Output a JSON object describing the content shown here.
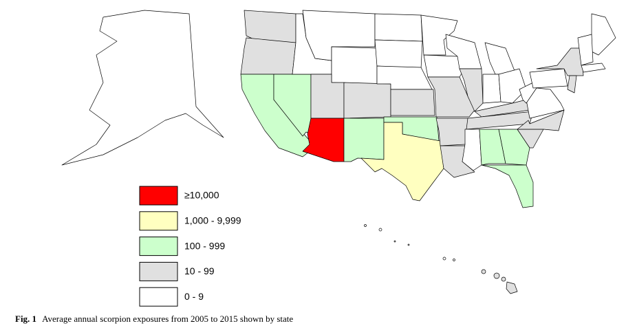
{
  "legend": {
    "items": [
      {
        "label": "≥10,000",
        "color": "#ff0000"
      },
      {
        "label": "1,000 - 9,999",
        "color": "#ffffc0"
      },
      {
        "label": "100 - 999",
        "color": "#ccffcc"
      },
      {
        "label": "10 - 99",
        "color": "#e0e0e0"
      },
      {
        "label": "0 - 9",
        "color": "#ffffff"
      }
    ]
  },
  "caption": {
    "label": "Fig. 1",
    "text": "Average annual scorpion exposures from 2005 to 2015 shown by state"
  }
}
